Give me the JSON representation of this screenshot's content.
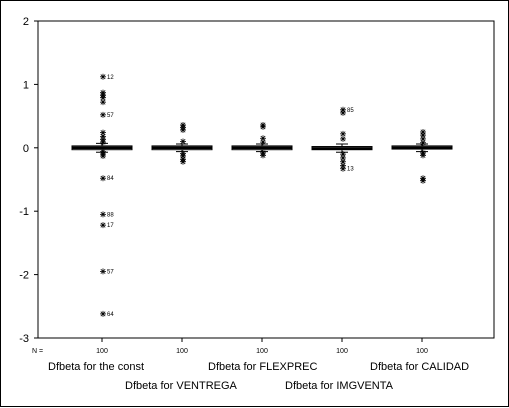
{
  "chart_data": {
    "type": "boxplot",
    "title": "",
    "ylabel": "",
    "xlabel": "",
    "ylim": [
      -3,
      2
    ],
    "yticks": [
      2,
      1,
      0,
      -1,
      -2,
      -3
    ],
    "n_label": "N =",
    "grid": false,
    "categories": [
      "Dfbeta for the const",
      "Dfbeta for VENTREGA",
      "Dfbeta for FLEXPREC",
      "Dfbeta for IMGVENTA",
      "Dfbeta for CALIDAD"
    ],
    "n": [
      "100",
      "100",
      "100",
      "100",
      "100"
    ],
    "series": [
      {
        "box": {
          "q1": -0.03,
          "median": 0.0,
          "q3": 0.03,
          "whisker_low": -0.07,
          "whisker_high": 0.07
        },
        "outliers": [
          {
            "value": 1.12,
            "label": "12"
          },
          {
            "value": 0.87,
            "label": ""
          },
          {
            "value": 0.83,
            "label": ""
          },
          {
            "value": 0.79,
            "label": ""
          },
          {
            "value": 0.72,
            "label": ""
          },
          {
            "value": 0.52,
            "label": "57"
          },
          {
            "value": 0.24,
            "label": ""
          },
          {
            "value": 0.18,
            "label": ""
          },
          {
            "value": 0.13,
            "label": ""
          },
          {
            "value": 0.09,
            "label": ""
          },
          {
            "value": -0.06,
            "label": ""
          },
          {
            "value": -0.1,
            "label": ""
          },
          {
            "value": -0.13,
            "label": ""
          },
          {
            "value": -0.48,
            "label": "84"
          },
          {
            "value": -1.05,
            "label": "88"
          },
          {
            "value": -1.22,
            "label": "17"
          },
          {
            "value": -1.95,
            "label": "57"
          },
          {
            "value": -2.62,
            "label": "64"
          }
        ]
      },
      {
        "box": {
          "q1": -0.03,
          "median": 0.0,
          "q3": 0.03,
          "whisker_low": -0.06,
          "whisker_high": 0.06
        },
        "outliers": [
          {
            "value": 0.36,
            "label": ""
          },
          {
            "value": 0.32,
            "label": ""
          },
          {
            "value": 0.28,
            "label": ""
          },
          {
            "value": 0.1,
            "label": ""
          },
          {
            "value": -0.09,
            "label": ""
          },
          {
            "value": -0.13,
            "label": ""
          },
          {
            "value": -0.18,
            "label": ""
          },
          {
            "value": -0.22,
            "label": ""
          }
        ]
      },
      {
        "box": {
          "q1": -0.03,
          "median": 0.0,
          "q3": 0.03,
          "whisker_low": -0.06,
          "whisker_high": 0.06
        },
        "outliers": [
          {
            "value": 0.36,
            "label": ""
          },
          {
            "value": 0.33,
            "label": ""
          },
          {
            "value": 0.15,
            "label": ""
          },
          {
            "value": 0.09,
            "label": ""
          },
          {
            "value": -0.08,
            "label": ""
          },
          {
            "value": -0.12,
            "label": ""
          }
        ]
      },
      {
        "box": {
          "q1": -0.03,
          "median": -0.01,
          "q3": 0.02,
          "whisker_low": -0.07,
          "whisker_high": 0.06
        },
        "outliers": [
          {
            "value": 0.6,
            "label": "85"
          },
          {
            "value": 0.55,
            "label": ""
          },
          {
            "value": 0.22,
            "label": ""
          },
          {
            "value": 0.14,
            "label": ""
          },
          {
            "value": -0.1,
            "label": ""
          },
          {
            "value": -0.16,
            "label": ""
          },
          {
            "value": -0.22,
            "label": ""
          },
          {
            "value": -0.28,
            "label": ""
          },
          {
            "value": -0.33,
            "label": "13"
          }
        ]
      },
      {
        "box": {
          "q1": -0.02,
          "median": 0.0,
          "q3": 0.03,
          "whisker_low": -0.06,
          "whisker_high": 0.06
        },
        "outliers": [
          {
            "value": 0.25,
            "label": ""
          },
          {
            "value": 0.2,
            "label": ""
          },
          {
            "value": 0.14,
            "label": ""
          },
          {
            "value": 0.08,
            "label": ""
          },
          {
            "value": -0.08,
            "label": ""
          },
          {
            "value": -0.12,
            "label": ""
          },
          {
            "value": -0.48,
            "label": ""
          },
          {
            "value": -0.52,
            "label": ""
          }
        ]
      }
    ]
  }
}
